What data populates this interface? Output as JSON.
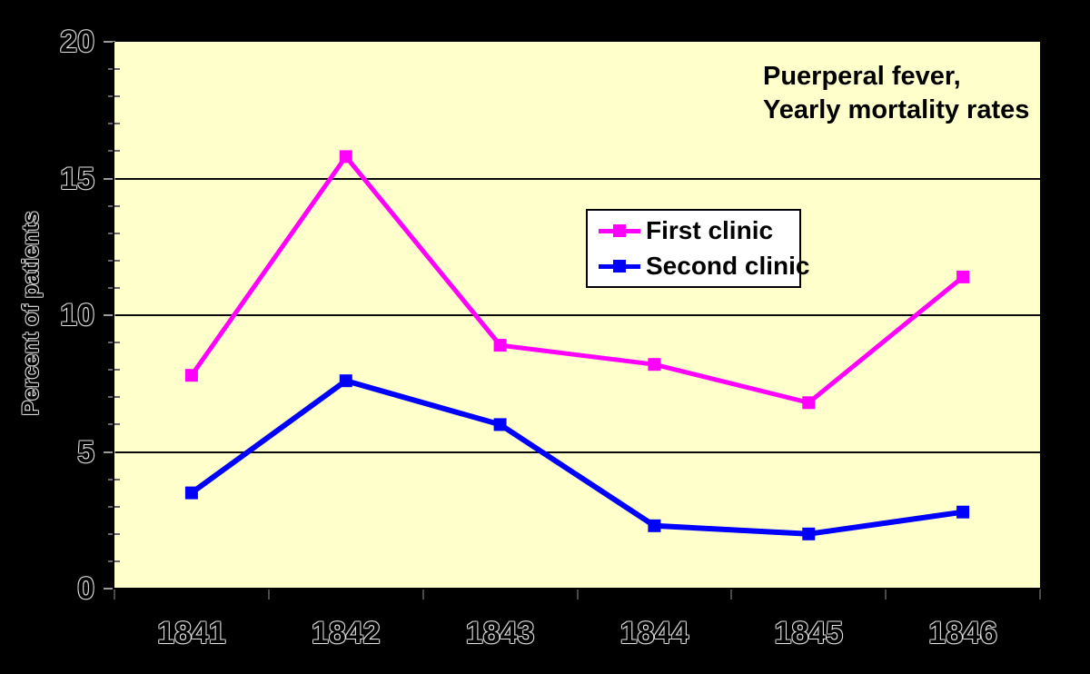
{
  "chart_data": {
    "type": "line",
    "title": "Puerperal fever,\nYearly mortality rates",
    "title_lines": [
      "Puerperal fever,",
      "Yearly mortality rates"
    ],
    "ylabel": "Percent of patients",
    "xlabel": "",
    "categories": [
      "1841",
      "1842",
      "1843",
      "1844",
      "1845",
      "1846"
    ],
    "series": [
      {
        "name": "First clinic",
        "color": "#FF00FF",
        "values": [
          7.8,
          15.8,
          8.9,
          8.2,
          6.8,
          11.4
        ]
      },
      {
        "name": "Second clinic",
        "color": "#0000FF",
        "values": [
          3.5,
          7.6,
          6.0,
          2.3,
          2.0,
          2.8
        ]
      }
    ],
    "ylim": [
      0,
      20
    ],
    "ytick_interval": 5,
    "ytick_labels": [
      "0",
      "5",
      "10",
      "15",
      "20"
    ],
    "minor_ytick_interval": 1,
    "grid": "horizontal-major",
    "legend_position": "center",
    "marker": "square",
    "colors": {
      "plot_bg": "#FFFFCC",
      "outer_bg": "#000000",
      "grid": "#0a0a0a",
      "axis": "#000000",
      "tick_minor": "#6a6a6a",
      "tick_major": "#9a9a9a",
      "tick_x": "#4a4a4a",
      "text": "#000000",
      "text_outline": "rgba(255,255,255,0.55)",
      "legend_bg": "#FFFFFF",
      "legend_border": "#000000"
    }
  }
}
